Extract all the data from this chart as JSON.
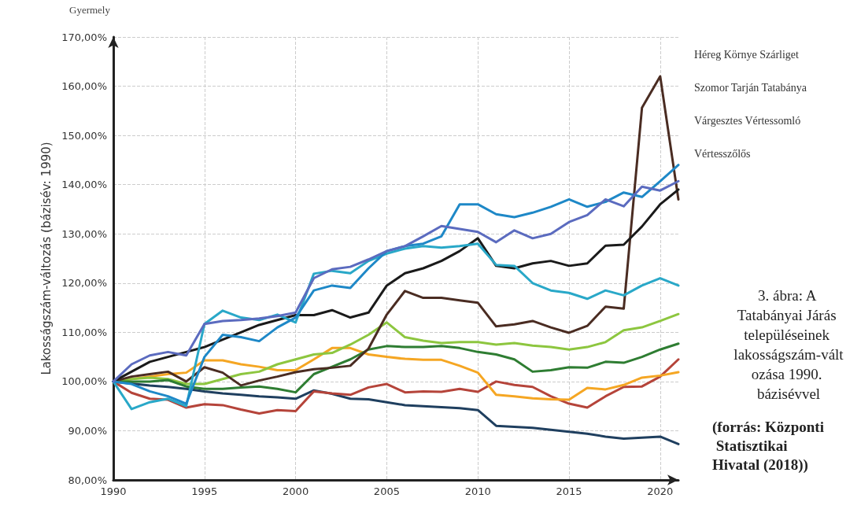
{
  "chart_data": {
    "type": "line",
    "title": "3. ábra: A Tatabányai Járás településeinek lakosságszám-változása 1990. bázisévvel",
    "ylabel": "Lakosságszám-változás (bázisév: 1990)",
    "annotations": [
      "Gyermely",
      "Héreg Környe Szárliget",
      "Szomor Tarján Tatabánya",
      "Várgesztes Vértessomló",
      "Vértesszőlős",
      "(forrás: Központi Statisztikai Hivatal (2018))"
    ],
    "x": [
      1990,
      1991,
      1992,
      1993,
      1994,
      1995,
      1996,
      1997,
      1998,
      1999,
      2000,
      2001,
      2002,
      2003,
      2004,
      2005,
      2006,
      2007,
      2008,
      2009,
      2010,
      2011,
      2012,
      2013,
      2014,
      2015,
      2016,
      2017,
      2018,
      2019,
      2020,
      2021
    ],
    "series": [
      {
        "color": "#1f3f5f",
        "values": [
          100,
          99.6,
          99.2,
          98.9,
          98.5,
          98,
          97.6,
          97.3,
          97,
          96.8,
          96.5,
          98.2,
          97.5,
          96.5,
          96.4,
          95.8,
          95.2,
          95,
          94.8,
          94.6,
          94.2,
          91,
          90.8,
          90.6,
          90.2,
          89.8,
          89.4,
          88.8,
          88.4,
          88.6,
          88.8,
          87.3
        ]
      },
      {
        "color": "#b5443a",
        "values": [
          100,
          97.7,
          96.5,
          96.3,
          94.7,
          95.4,
          95.2,
          94.3,
          93.5,
          94.2,
          94,
          98,
          97.6,
          97.3,
          98.8,
          99.5,
          97.8,
          98,
          97.9,
          98.5,
          97.9,
          100,
          99.3,
          98.9,
          97,
          95.5,
          94.7,
          97,
          98.9,
          99,
          101,
          104.5
        ]
      },
      {
        "color": "#f5a623",
        "values": [
          100,
          100.5,
          101,
          101.5,
          101.8,
          104.3,
          104.3,
          103.5,
          103,
          102.3,
          102.3,
          104.5,
          106.8,
          106.8,
          105.5,
          105,
          104.6,
          104.4,
          104.4,
          103.2,
          101.8,
          97.3,
          97,
          96.6,
          96.4,
          96.3,
          98.7,
          98.4,
          99.3,
          100.8,
          101.2,
          101.9
        ]
      },
      {
        "color": "#8dc63f",
        "values": [
          100,
          100.5,
          100.8,
          100.5,
          99.5,
          99.5,
          100.5,
          101.5,
          102,
          103.5,
          104.5,
          105.5,
          105.8,
          107.5,
          109.5,
          112,
          109,
          108.3,
          107.8,
          108,
          108,
          107.5,
          107.8,
          107.3,
          107,
          106.5,
          107,
          108,
          110.4,
          111,
          112.3,
          113.7
        ]
      },
      {
        "color": "#2e7d32",
        "values": [
          100,
          100,
          100,
          100.3,
          99,
          98.5,
          98.5,
          98.8,
          99,
          98.5,
          97.8,
          101.5,
          103,
          104.5,
          106.5,
          107.2,
          107,
          107,
          107.2,
          106.8,
          106,
          105.5,
          104.5,
          102,
          102.3,
          102.9,
          102.8,
          104,
          103.8,
          105,
          106.5,
          107.7
        ]
      },
      {
        "color": "#4a2c22",
        "values": [
          100,
          101,
          101.5,
          102,
          100,
          102.9,
          101.8,
          99.2,
          100.2,
          101,
          101.9,
          102.5,
          102.8,
          103.2,
          106.7,
          113.6,
          118.4,
          117,
          117,
          116.5,
          116,
          111.2,
          111.6,
          112.3,
          111,
          109.9,
          111.3,
          115.2,
          114.8,
          155.6,
          162,
          137
        ]
      },
      {
        "color": "#1a1a1a",
        "values": [
          100,
          102,
          104,
          105,
          106,
          107,
          108.5,
          110,
          111.5,
          112.5,
          113.5,
          113.5,
          114.5,
          113,
          114,
          119.5,
          122,
          123,
          124.5,
          126.5,
          129.1,
          123.5,
          123,
          124,
          124.5,
          123.5,
          124,
          127.6,
          127.8,
          131.5,
          136,
          139
        ]
      },
      {
        "color": "#29a8c8",
        "values": [
          100,
          94.4,
          95.8,
          96.5,
          95,
          111.7,
          114.4,
          113,
          112.5,
          113.6,
          112,
          121.9,
          122.5,
          122,
          124.5,
          126,
          127,
          127.5,
          127.2,
          127.5,
          128,
          123.7,
          123.5,
          120,
          118.5,
          118,
          116.8,
          118.5,
          117.5,
          119.5,
          121,
          119.5
        ]
      },
      {
        "color": "#1e88c7",
        "values": [
          100,
          99.5,
          98,
          97,
          95.5,
          105,
          109.5,
          109,
          108.2,
          111,
          113,
          118.5,
          119.5,
          119,
          123,
          126.5,
          127.5,
          128,
          129.5,
          136,
          136,
          134,
          133.4,
          134.3,
          135.5,
          137,
          135.5,
          136.5,
          138.4,
          137.5,
          140.7,
          144
        ]
      },
      {
        "color": "#5b6bbf",
        "values": [
          100,
          103.5,
          105.3,
          106,
          105.3,
          111.7,
          112.3,
          112.5,
          112.8,
          113.3,
          114,
          121,
          122.8,
          123.3,
          124.8,
          126.5,
          127.5,
          129.5,
          131.6,
          131,
          130.4,
          128.3,
          130.7,
          129.1,
          130,
          132.4,
          133.8,
          137,
          135.6,
          139.6,
          138.8,
          140.7
        ]
      }
    ],
    "xlim": [
      1990,
      2021
    ],
    "xticks": [
      1990,
      1995,
      2000,
      2005,
      2010,
      2015,
      2020
    ],
    "ylim": [
      80,
      170
    ],
    "yticks": [
      {
        "value": 80,
        "label": "80,00%"
      },
      {
        "value": 90,
        "label": "90,00%"
      },
      {
        "value": 100,
        "label": "100,00%"
      },
      {
        "value": 110,
        "label": "110,00%"
      },
      {
        "value": 120,
        "label": "120,00%"
      },
      {
        "value": 130,
        "label": "130,00%"
      },
      {
        "value": 140,
        "label": "140,00%"
      },
      {
        "value": 150,
        "label": "150,00%"
      },
      {
        "value": 160,
        "label": "160,00%"
      },
      {
        "value": 170,
        "label": "170,00%"
      }
    ],
    "grid": true,
    "marker": "none",
    "line_style": "solid"
  }
}
